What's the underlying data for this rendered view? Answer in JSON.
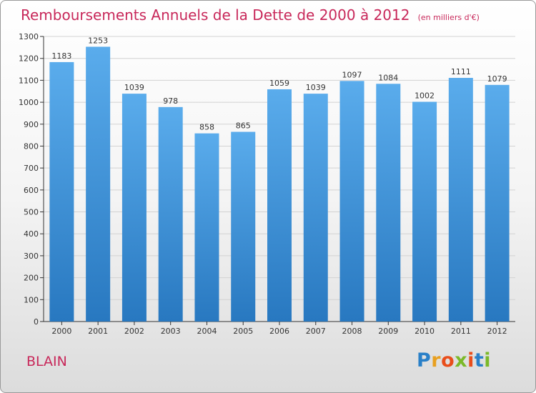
{
  "title": "Remboursements Annuels de la Dette de 2000 à 2012",
  "unit": "(en milliers d'€)",
  "commune": "BLAIN",
  "logo": {
    "letters": [
      "P",
      "r",
      "o",
      "x",
      "i",
      "t",
      "i"
    ],
    "colors": [
      "#2a80c8",
      "#e8a020",
      "#e94e1b",
      "#7bb929",
      "#e94e1b",
      "#2a80c8",
      "#7bb929"
    ]
  },
  "colors": {
    "bar_top": "#5aacec",
    "bar_bottom": "#2878c0",
    "grid": "#d2d2d2",
    "axis": "#333333",
    "accent": "#c8285a"
  },
  "chart_data": {
    "type": "bar",
    "title": "Remboursements Annuels de la Dette de 2000 à 2012",
    "subtitle": "(en milliers d'€)",
    "categories": [
      "2000",
      "2001",
      "2002",
      "2003",
      "2004",
      "2005",
      "2006",
      "2007",
      "2008",
      "2009",
      "2010",
      "2011",
      "2012"
    ],
    "values": [
      1183,
      1253,
      1039,
      978,
      858,
      865,
      1059,
      1039,
      1097,
      1084,
      1002,
      1111,
      1079
    ],
    "ylim": [
      0,
      1300
    ],
    "yticks": [
      0,
      100,
      200,
      300,
      400,
      500,
      600,
      700,
      800,
      900,
      1000,
      1100,
      1200,
      1300
    ],
    "grid": true,
    "xlabel": "",
    "ylabel": ""
  }
}
